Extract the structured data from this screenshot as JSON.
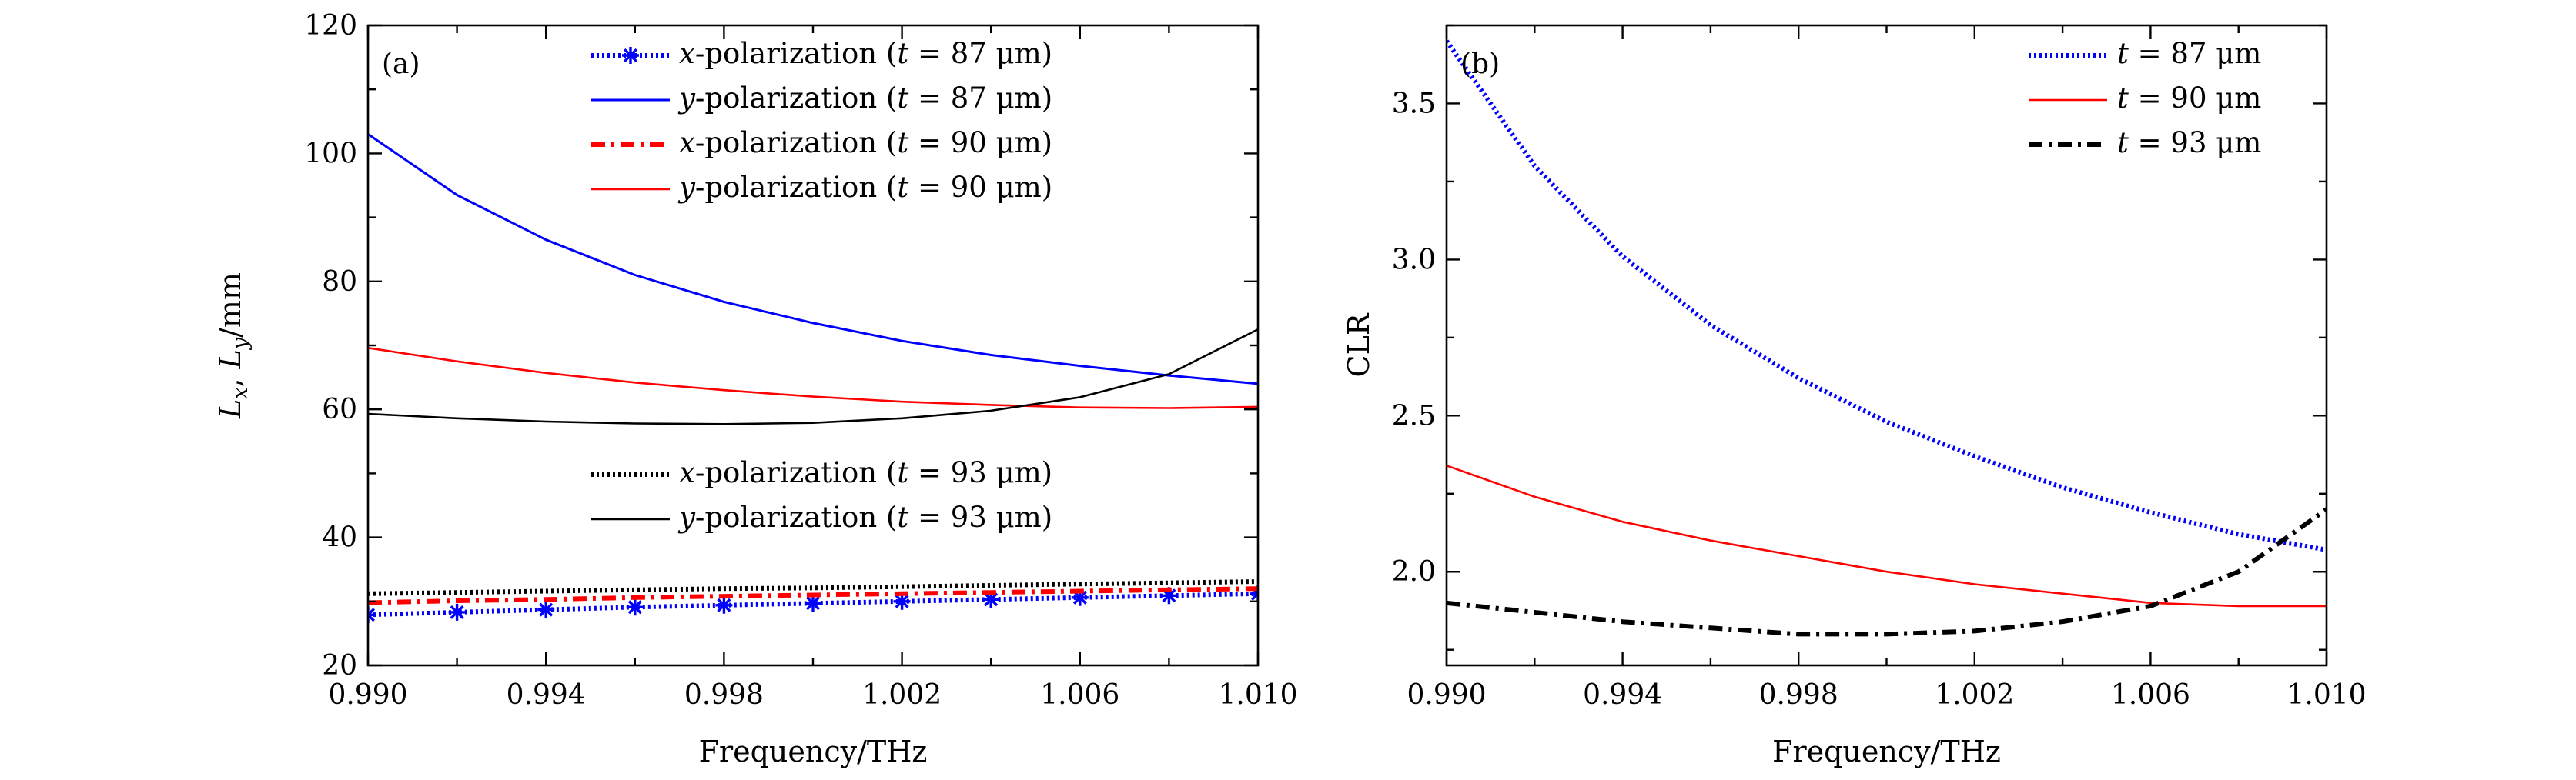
{
  "chart_data": [
    {
      "type": "line",
      "panel_label": "(a)",
      "xlabel": "Frequency/THz",
      "ylabel": "L_x, L_y/mm",
      "xlim": [
        0.99,
        1.01
      ],
      "ylim": [
        20,
        120
      ],
      "xticks": [
        "0.990",
        "0.994",
        "0.998",
        "1.002",
        "1.006",
        "1.010"
      ],
      "yticks": [
        "20",
        "40",
        "60",
        "80",
        "100",
        "120"
      ],
      "x": [
        0.99,
        0.992,
        0.994,
        0.996,
        0.998,
        1.0,
        1.002,
        1.004,
        1.006,
        1.008,
        1.01
      ],
      "series": [
        {
          "name": "x-polarization (t = 87 μm)",
          "color": "#0000ff",
          "style": "dotted-star",
          "values": [
            27.9,
            28.3,
            28.7,
            29.1,
            29.4,
            29.7,
            30.0,
            30.3,
            30.6,
            30.9,
            31.2
          ]
        },
        {
          "name": "y-polarization (t = 87 μm)",
          "color": "#0000ff",
          "style": "solid",
          "values": [
            103.0,
            93.5,
            86.5,
            81.0,
            76.8,
            73.5,
            70.7,
            68.5,
            66.8,
            65.3,
            64.0
          ]
        },
        {
          "name": "x-polarization (t = 90 μm)",
          "color": "#ff0000",
          "style": "dashdot",
          "values": [
            29.8,
            30.1,
            30.3,
            30.6,
            30.8,
            31.0,
            31.2,
            31.4,
            31.6,
            31.8,
            32.0
          ]
        },
        {
          "name": "y-polarization (t = 90 μm)",
          "color": "#ff0000",
          "style": "solid-thin",
          "values": [
            69.6,
            67.5,
            65.7,
            64.2,
            63.0,
            62.0,
            61.2,
            60.7,
            60.3,
            60.2,
            60.4
          ]
        },
        {
          "name": "x-polarization (t = 93 μm)",
          "color": "#000000",
          "style": "dotted",
          "values": [
            31.2,
            31.4,
            31.6,
            31.8,
            32.0,
            32.1,
            32.3,
            32.5,
            32.7,
            32.9,
            33.1
          ]
        },
        {
          "name": "y-polarization (t = 93 μm)",
          "color": "#000000",
          "style": "solid-thin",
          "values": [
            59.3,
            58.6,
            58.1,
            57.8,
            57.7,
            57.9,
            58.6,
            59.8,
            61.9,
            65.5,
            72.5
          ]
        }
      ],
      "legend_groups": [
        {
          "position": "top",
          "series_indices": [
            0,
            1,
            2,
            3
          ]
        },
        {
          "position": "lower-middle",
          "series_indices": [
            4,
            5
          ]
        }
      ]
    },
    {
      "type": "line",
      "panel_label": "(b)",
      "xlabel": "Frequency/THz",
      "ylabel": "CLR",
      "xlim": [
        0.99,
        1.01
      ],
      "ylim": [
        1.7,
        3.75
      ],
      "xticks": [
        "0.990",
        "0.994",
        "0.998",
        "1.002",
        "1.006",
        "1.010"
      ],
      "yticks": [
        "2.0",
        "2.5",
        "3.0",
        "3.5"
      ],
      "x": [
        0.99,
        0.992,
        0.994,
        0.996,
        0.998,
        1.0,
        1.002,
        1.004,
        1.006,
        1.008,
        1.01
      ],
      "series": [
        {
          "name": "t = 87 μm",
          "color": "#0000ff",
          "style": "dotted",
          "values": [
            3.7,
            3.3,
            3.01,
            2.79,
            2.62,
            2.48,
            2.37,
            2.27,
            2.19,
            2.12,
            2.07
          ]
        },
        {
          "name": "t = 90 μm",
          "color": "#ff0000",
          "style": "solid-thin",
          "values": [
            2.34,
            2.24,
            2.16,
            2.1,
            2.05,
            2.0,
            1.96,
            1.93,
            1.9,
            1.89,
            1.89
          ]
        },
        {
          "name": "t = 93 μm",
          "color": "#000000",
          "style": "dashdot",
          "values": [
            1.9,
            1.87,
            1.84,
            1.82,
            1.8,
            1.8,
            1.81,
            1.84,
            1.89,
            2.0,
            2.2
          ]
        }
      ],
      "legend_groups": [
        {
          "position": "top-right",
          "series_indices": [
            0,
            1,
            2
          ]
        }
      ]
    }
  ]
}
